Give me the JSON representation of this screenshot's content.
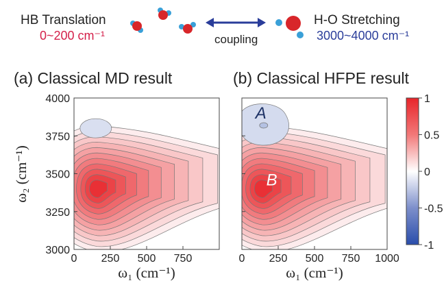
{
  "header": {
    "left_title": "HB Translation",
    "left_range": "0~200 cm⁻¹",
    "coupling": "coupling",
    "right_title": "H-O Stretching",
    "right_range": "3000~4000 cm⁻¹",
    "colors": {
      "left_range": "#d4204a",
      "right_range": "#2a3d9a",
      "arrow": "#2a3d9a",
      "oxygen": "#d8262a",
      "hydrogen": "#3aa0d8"
    }
  },
  "chart_data": [
    {
      "type": "contour",
      "title": "(a) Classical MD result",
      "xlabel": "ω₁ (cm⁻¹)",
      "ylabel": "ω₂ (cm⁻¹)",
      "xlim": [
        0,
        1000
      ],
      "ylim": [
        3000,
        4000
      ],
      "xticks": [
        "0",
        "250",
        "500",
        "750"
      ],
      "yticks": [
        "3000",
        "3250",
        "3500",
        "3750",
        "4000"
      ],
      "positive_peak": {
        "x": 160,
        "y": 3400,
        "value": 1.0
      },
      "negative_feature": {
        "x": 150,
        "y": 3800,
        "value": -0.1
      },
      "ridge_extends_to_x": 1000
    },
    {
      "type": "contour",
      "title": "(b) Classical HFPE result",
      "xlabel": "ω₁ (cm⁻¹)",
      "xlim": [
        0,
        1000
      ],
      "ylim": [
        3000,
        4000
      ],
      "xticks": [
        "0",
        "250",
        "500",
        "750",
        "1000"
      ],
      "positive_peak": {
        "x": 140,
        "y": 3400,
        "value": 1.0,
        "label": "B"
      },
      "negative_feature": {
        "x": 150,
        "y": 3810,
        "value": -0.15,
        "label": "A"
      },
      "ridge_extends_to_x": 1000
    }
  ],
  "colorbar": {
    "ticks": [
      "1",
      "0.5",
      "0",
      "-0.5",
      "-1"
    ],
    "range": [
      -1,
      1
    ],
    "colors": {
      "max": "#e8252a",
      "mid": "#ffffff",
      "min": "#2a4dab"
    }
  }
}
